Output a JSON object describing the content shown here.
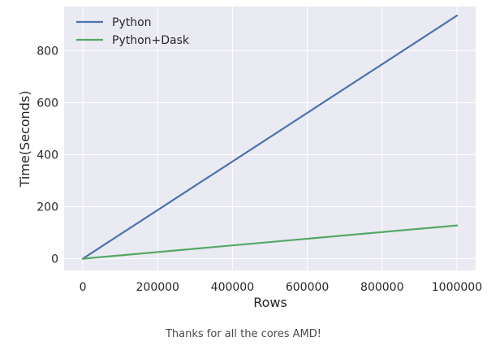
{
  "chart_data": {
    "type": "line",
    "title": "",
    "xlabel": "Rows",
    "ylabel": "Time(Seconds)",
    "xlim": [
      -50000,
      1050000
    ],
    "ylim": [
      -45,
      970
    ],
    "x_ticks": [
      0,
      200000,
      400000,
      600000,
      800000,
      1000000
    ],
    "y_ticks": [
      0,
      200,
      400,
      600,
      800
    ],
    "grid": true,
    "legend_position": "top-left",
    "series": [
      {
        "name": "Python",
        "color": "#4c72b0",
        "x": [
          0,
          1000000
        ],
        "y": [
          0,
          935
        ]
      },
      {
        "name": "Python+Dask",
        "color": "#55a868",
        "x": [
          0,
          1000000
        ],
        "y": [
          0,
          128
        ]
      }
    ]
  },
  "caption": "Thanks for all the cores AMD!"
}
